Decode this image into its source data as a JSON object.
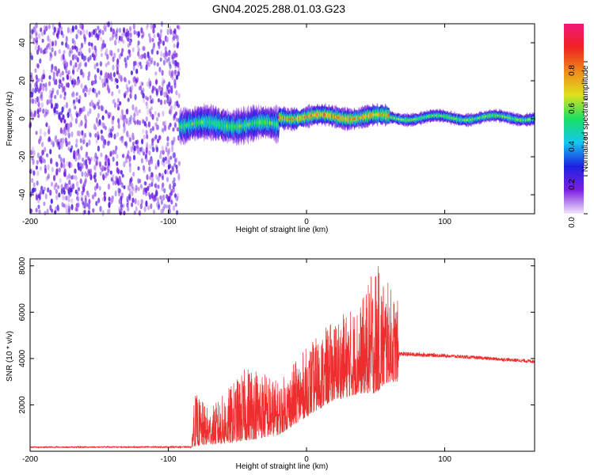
{
  "title": "GN04.2025.288.01.03.G23",
  "chart_data": [
    {
      "type": "heatmap",
      "xlabel": "Height of straight line (km)",
      "ylabel": "Frequency (Hz)",
      "xlim": [
        -200,
        165
      ],
      "ylim": [
        -50,
        50
      ],
      "x_ticks": [
        -200,
        -100,
        0,
        100
      ],
      "y_ticks": [
        -40,
        -20,
        0,
        20,
        40
      ],
      "colorbar": {
        "label": "Normalized spectral amplitude",
        "range": [
          0,
          1
        ],
        "ticks": [
          "0.0",
          "0.2",
          "0.4",
          "0.6",
          "0.8"
        ],
        "colors": [
          "#f2e8fb",
          "#7b1fe0",
          "#1d22e0",
          "#14c8f0",
          "#19e060",
          "#e0e01e",
          "#f08a18",
          "#ee2222",
          "#f01878"
        ]
      },
      "regions": [
        {
          "x_range": [
            -200,
            -92
          ],
          "description": "scattered noise",
          "freq_range": [
            -50,
            50
          ],
          "amplitude": 0.1
        },
        {
          "x_range": [
            -92,
            -20
          ],
          "center_freq": -3,
          "spread_hz": 8,
          "amplitude": 0.5
        },
        {
          "x_range": [
            -20,
            60
          ],
          "center_freq": 1,
          "spread_hz": 5,
          "amplitude": 0.7
        },
        {
          "x_range": [
            60,
            165
          ],
          "center_freq": 0.5,
          "spread_hz": 3,
          "amplitude": 0.55
        }
      ],
      "grid": false
    },
    {
      "type": "line",
      "xlabel": "Height of straight line (km)",
      "ylabel": "SNR (10 * v/v)",
      "xlim": [
        -200,
        165
      ],
      "ylim": [
        0,
        8300
      ],
      "x_ticks": [
        -200,
        -100,
        0,
        100
      ],
      "y_ticks": [
        2000,
        4000,
        6000,
        8000
      ],
      "color": "#ee2e2e",
      "envelope": [
        {
          "x": -200,
          "base": 150,
          "peak": 200
        },
        {
          "x": -83,
          "base": 150,
          "peak": 220
        },
        {
          "x": -82,
          "base": 200,
          "peak": 2600
        },
        {
          "x": -70,
          "base": 300,
          "peak": 1800
        },
        {
          "x": -60,
          "base": 300,
          "peak": 2500
        },
        {
          "x": -40,
          "base": 500,
          "peak": 3900
        },
        {
          "x": -20,
          "base": 700,
          "peak": 3000
        },
        {
          "x": 0,
          "base": 1500,
          "peak": 4500
        },
        {
          "x": 20,
          "base": 2200,
          "peak": 5700
        },
        {
          "x": 40,
          "base": 2500,
          "peak": 6500
        },
        {
          "x": 50,
          "base": 2500,
          "peak": 8200
        },
        {
          "x": 60,
          "base": 3000,
          "peak": 7200
        },
        {
          "x": 66,
          "base": 3000,
          "peak": 6500
        },
        {
          "x": 67,
          "base": 4100,
          "peak": 4300
        },
        {
          "x": 100,
          "base": 4050,
          "peak": 4200
        },
        {
          "x": 165,
          "base": 3800,
          "peak": 3950
        }
      ],
      "grid": false
    }
  ]
}
